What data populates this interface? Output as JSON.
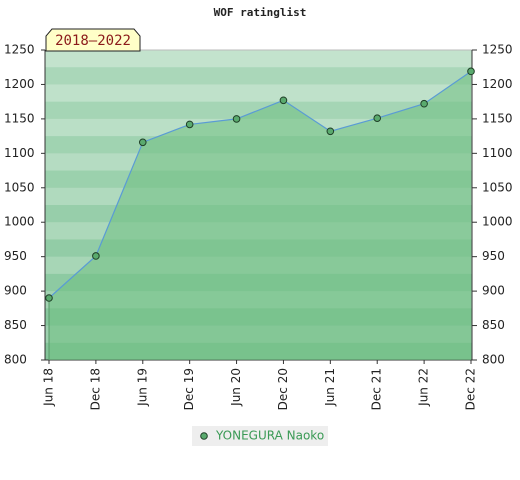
{
  "chart_data": {
    "type": "line",
    "title": "WOF ratinglist",
    "annotation": "2018–2022",
    "categories": [
      "Jun 18",
      "Dec 18",
      "Jun 19",
      "Dec 19",
      "Jun 20",
      "Dec 20",
      "Jun 21",
      "Dec 21",
      "Jun 22",
      "Dec 22"
    ],
    "series": [
      {
        "name": "YONEGURA Naoko",
        "color": "#5a9bd5",
        "marker_color": "#5aaa6e",
        "fill": "#6fbf82",
        "values": [
          890,
          951,
          1116,
          1142,
          1150,
          1177,
          1132,
          1151,
          1172,
          1219
        ]
      }
    ],
    "area": true,
    "ylim": [
      800,
      1250
    ],
    "yticks": [
      800,
      850,
      900,
      950,
      1000,
      1050,
      1100,
      1150,
      1200,
      1250
    ],
    "y2lim": [
      800,
      1250
    ],
    "y2ticks": [
      800,
      850,
      900,
      950,
      1000,
      1050,
      1100,
      1150,
      1200,
      1250
    ]
  }
}
